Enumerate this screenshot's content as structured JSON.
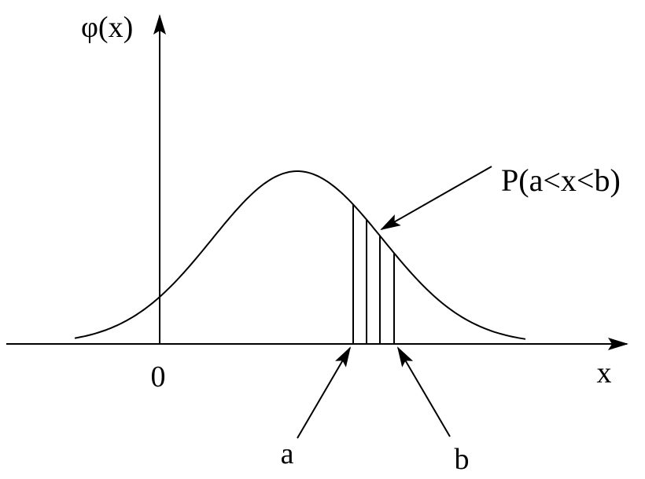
{
  "labels": {
    "y_axis": "φ(x)",
    "origin": "0",
    "x_axis": "x",
    "a": "a",
    "b": "b",
    "probability": "P(a<x<b)"
  }
}
